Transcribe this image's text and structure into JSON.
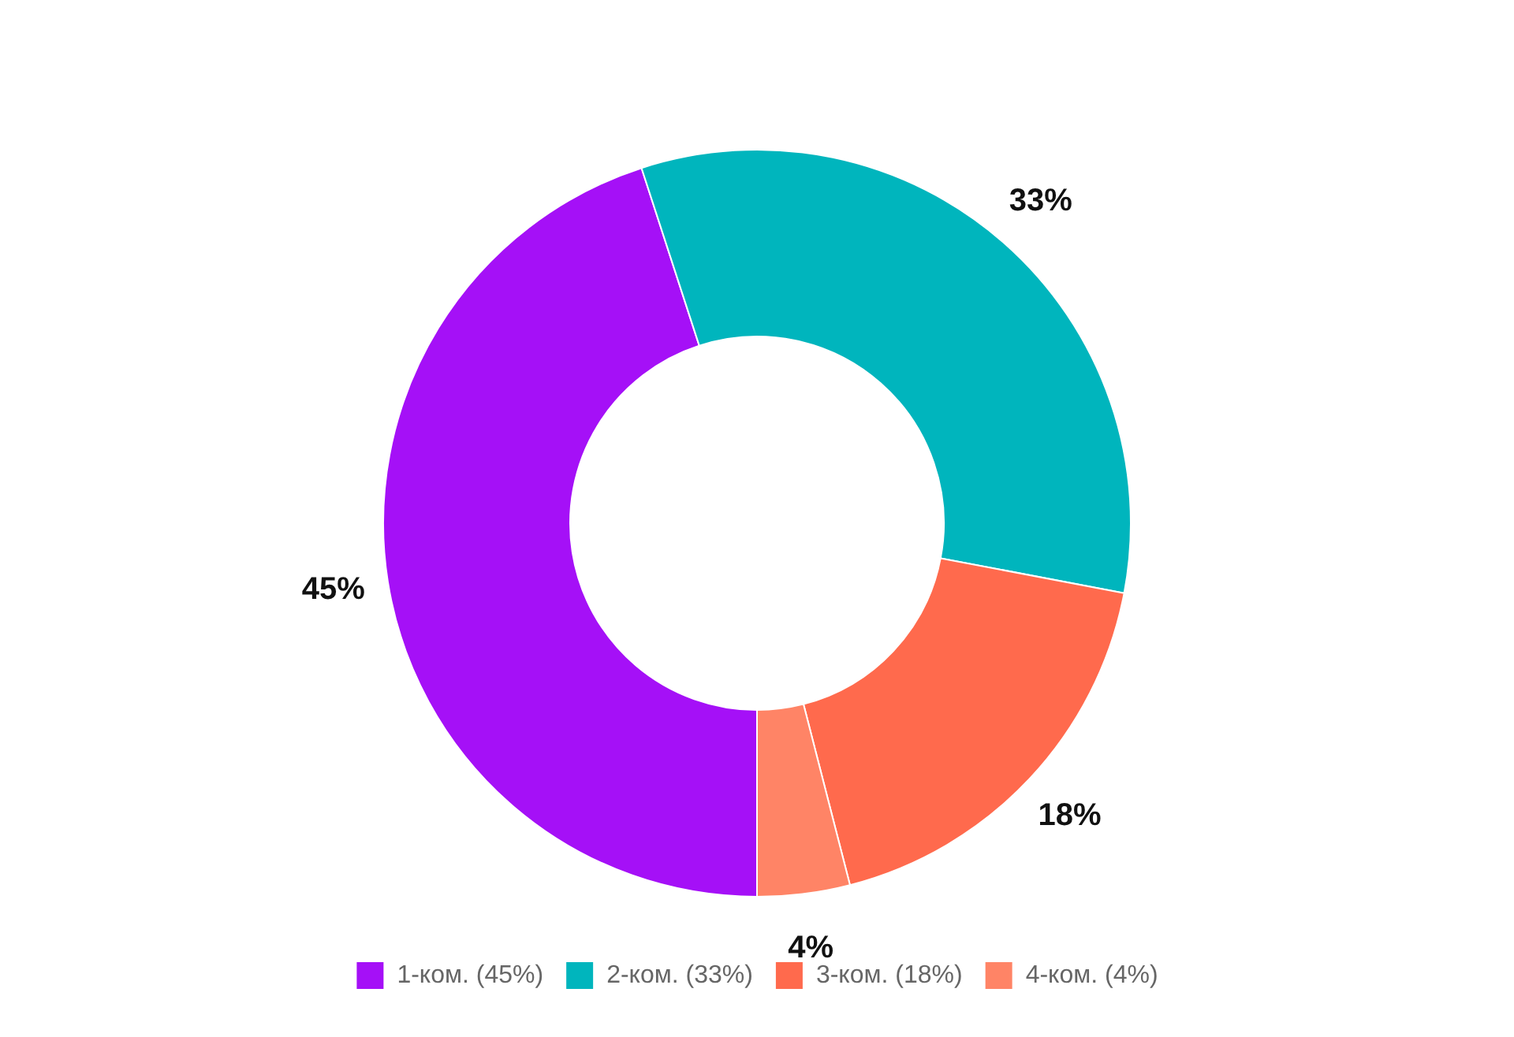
{
  "chart_data": {
    "type": "donut",
    "categories": [
      "1-ком. (45%)",
      "2-ком. (33%)",
      "3-ком. (18%)",
      "4-ком. (4%)"
    ],
    "values": [
      45,
      33,
      18,
      4
    ],
    "colors": [
      "#a510f7",
      "#00b5bd",
      "#ff6a4d",
      "#ff8466"
    ],
    "value_labels": [
      "45%",
      "33%",
      "18%",
      "4%"
    ],
    "legend": "bottom"
  }
}
